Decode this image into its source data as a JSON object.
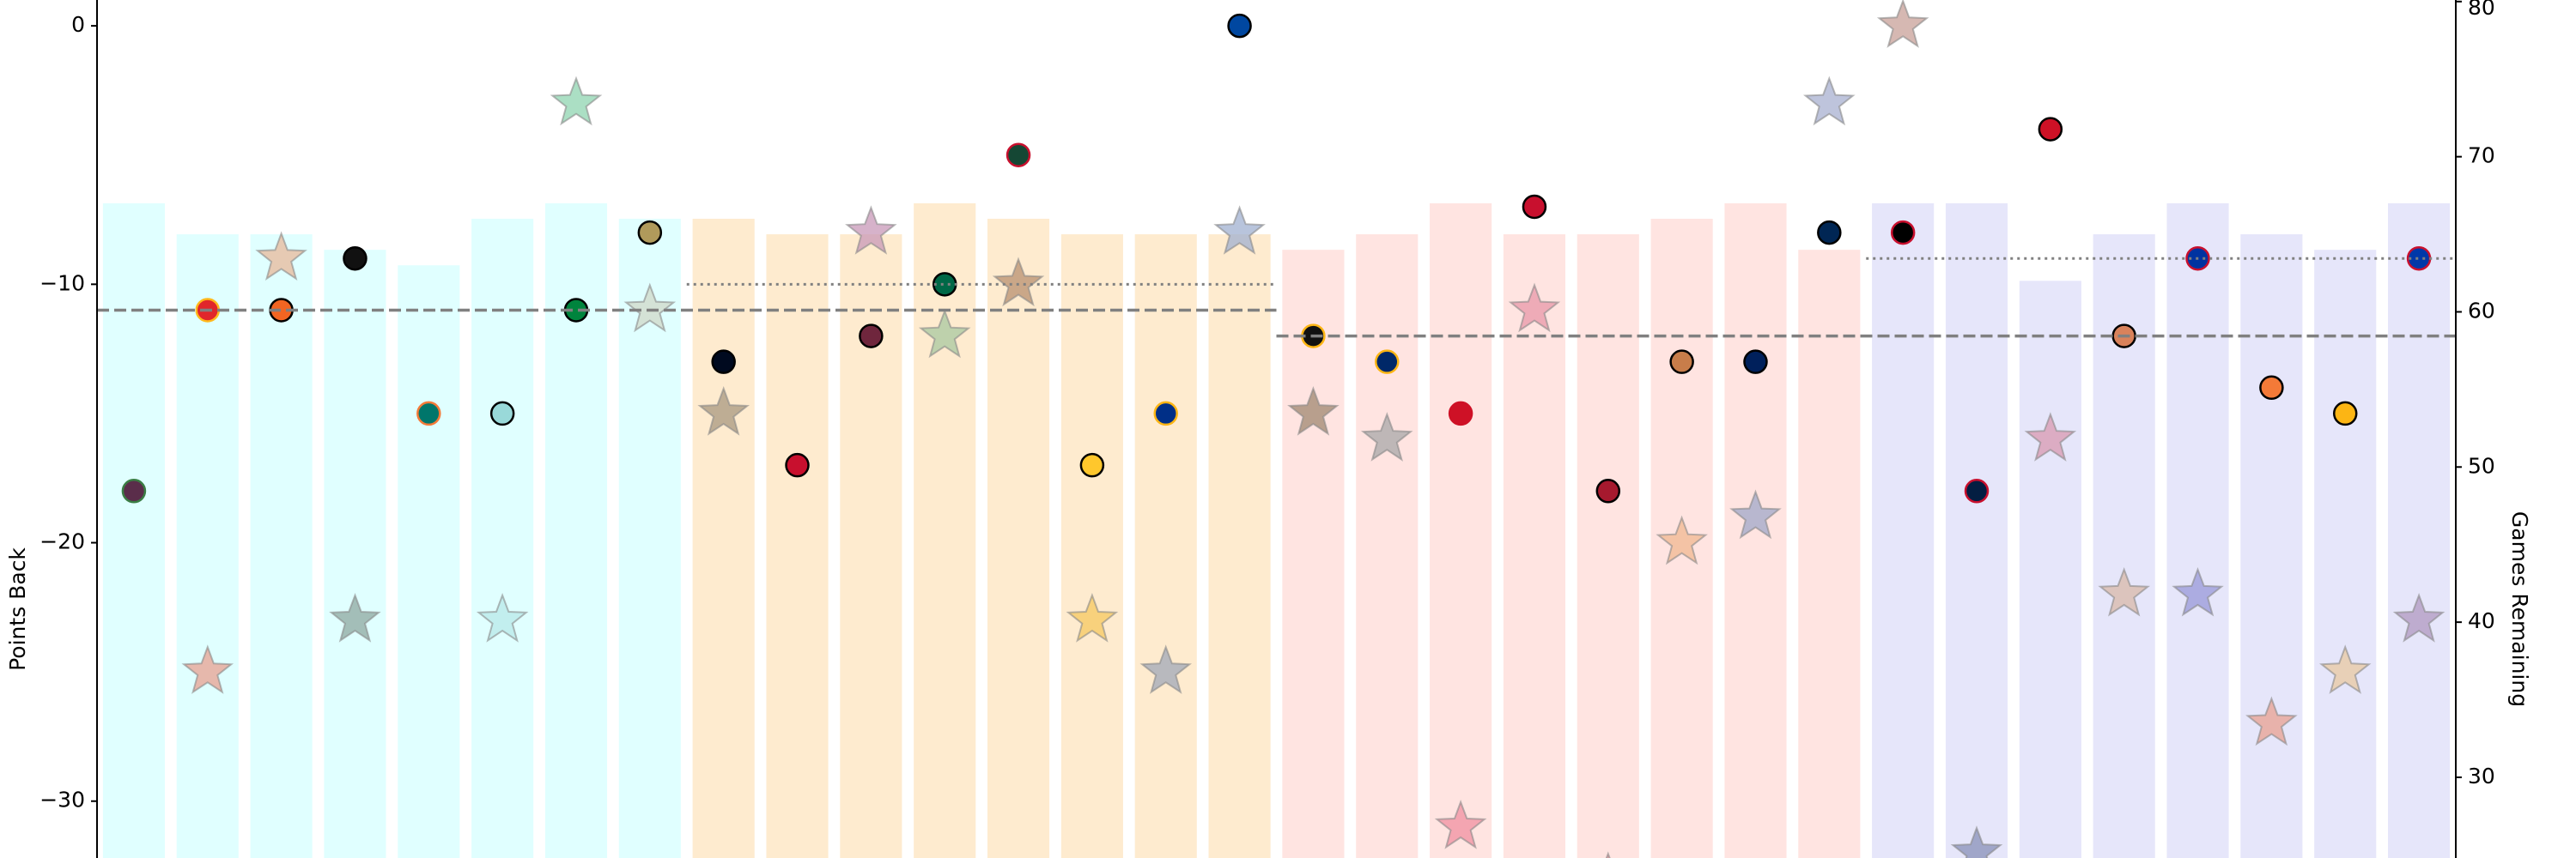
{
  "chart_data": {
    "type": "bar",
    "y_label": "Points Back",
    "y2_label": "Games Remaining",
    "categories": [
      null,
      null,
      null,
      null,
      null,
      null,
      null,
      null,
      null,
      null,
      null,
      null,
      null,
      null,
      null,
      null,
      null,
      null,
      null,
      null,
      null,
      null,
      null,
      null,
      null,
      null,
      null,
      null,
      null,
      null,
      null,
      null
    ],
    "ylim": [
      -32.2,
      1.0
    ],
    "yticks": [
      {
        "value": -30,
        "label": "−30"
      },
      {
        "value": -20,
        "label": "−20"
      },
      {
        "value": -10,
        "label": "−10"
      },
      0
    ],
    "y2lim": [
      24.8,
      80.1
    ],
    "y2ticks": [
      30,
      40,
      50,
      60,
      70,
      80
    ],
    "series": [
      {
        "kind": "bar",
        "axis": "y2",
        "values": [
          67,
          65,
          65,
          64,
          63,
          66,
          67,
          66,
          66,
          65,
          65,
          67,
          66,
          65,
          65,
          65,
          64,
          65,
          67,
          65,
          65,
          66,
          67,
          64,
          67,
          67,
          62,
          65,
          67,
          65,
          64,
          67
        ],
        "colors": [
          "#e0ffff",
          "#e0ffff",
          "#e0ffff",
          "#e0ffff",
          "#e0ffff",
          "#e0ffff",
          "#e0ffff",
          "#e0ffff",
          "#feebcf",
          "#feebcf",
          "#feebcf",
          "#feebcf",
          "#feebcf",
          "#feebcf",
          "#feebcf",
          "#feebcf",
          "#ffe4e1",
          "#ffe4e1",
          "#ffe4e1",
          "#ffe4e1",
          "#ffe4e1",
          "#ffe4e1",
          "#ffe4e1",
          "#ffe4e1",
          "#e6e6fa",
          "#e6e6fa",
          "#e6e6fa",
          "#e6e6fa",
          "#e6e6fa",
          "#e6e6fa",
          "#e6e6fa",
          "#e6e6fa"
        ]
      },
      {
        "kind": "circle",
        "values": [
          -18,
          -11,
          -11,
          -9,
          -15,
          -15,
          -11,
          -8,
          -13,
          -17,
          -12,
          -10,
          -5,
          -17,
          -15,
          0,
          -12,
          -13,
          -15,
          -7,
          -18,
          -13,
          -13,
          -8,
          -8,
          -18,
          -4,
          -12,
          -9,
          -14,
          -15,
          -9
        ],
        "colors": [
          "#5a2d4a",
          "#e0262b",
          "#f26522",
          "#111111",
          "#00766b",
          "#99d9d9",
          "#00843d",
          "#b09a5b",
          "#000a1f",
          "#c8102e",
          "#6f263d",
          "#006847",
          "#154734",
          "#ffc72c",
          "#002f87",
          "#0047a0",
          "#111111",
          "#002868",
          "#ce1126",
          "#c8102e",
          "#a6192e",
          "#c87d4a",
          "#00205b",
          "#002654",
          "#000000",
          "#041e42",
          "#ce1126",
          "#d9825b",
          "#0033a0",
          "#f47a38",
          "#fcb514",
          "#0038a8"
        ],
        "edgecolors": [
          "#3a7d44",
          "#ffb81c",
          "#000000",
          "#000000",
          "#f47a38",
          "#000000",
          "#000000",
          "#000000",
          "#000000",
          "#000000",
          "#000000",
          "#000000",
          "#c8102e",
          "#000000",
          "#fcb514",
          "#000000",
          "#fcb514",
          "#fcb514",
          "#ce1126",
          "#000000",
          "#000000",
          "#000000",
          "#000000",
          "#000000",
          "#c8102e",
          "#c8102e",
          "#000000",
          "#000000",
          "#c8102e",
          "#000000",
          "#000000",
          "#c8102e"
        ]
      },
      {
        "kind": "star",
        "values": [
          null,
          -25,
          -9,
          -23,
          null,
          -23,
          -3,
          -11,
          -15,
          null,
          -8,
          -12,
          -10,
          -23,
          -25,
          -8,
          -15,
          -16,
          -31,
          -11,
          -33,
          -20,
          -19,
          -3,
          0,
          -32,
          -16,
          -22,
          -22,
          -27,
          -25,
          -23
        ],
        "colors": [
          "#cccccc",
          "#e8a090",
          "#e8b89a",
          "#8fa8a0",
          "#cccccc",
          "#b8e8e8",
          "#8fd4b0",
          "#d0d8c8",
          "#a89880",
          "#cccccc",
          "#c898b8",
          "#a8c8a0",
          "#b89070",
          "#f5c860",
          "#a0a8b8",
          "#a0b0d0",
          "#a08870",
          "#a8a8a8",
          "#f090a0",
          "#e898a8",
          "#e09098",
          "#f0b890",
          "#a0a8c8",
          "#a8b0d0",
          "#c8a098",
          "#8890b8",
          "#d898b0",
          "#d8b8a8",
          "#9898d8",
          "#e8a090",
          "#e8c8a0",
          "#b098c0"
        ]
      }
    ],
    "reference_lines": [
      {
        "value": -11,
        "style": "dashed",
        "start": 0,
        "end": 15
      },
      {
        "value": -12,
        "style": "dashed",
        "start": 16,
        "end": 31
      },
      {
        "value": -10,
        "style": "dotted",
        "start": 8,
        "end": 15
      },
      {
        "value": -9,
        "style": "dotted",
        "start": 24,
        "end": 31
      }
    ]
  }
}
